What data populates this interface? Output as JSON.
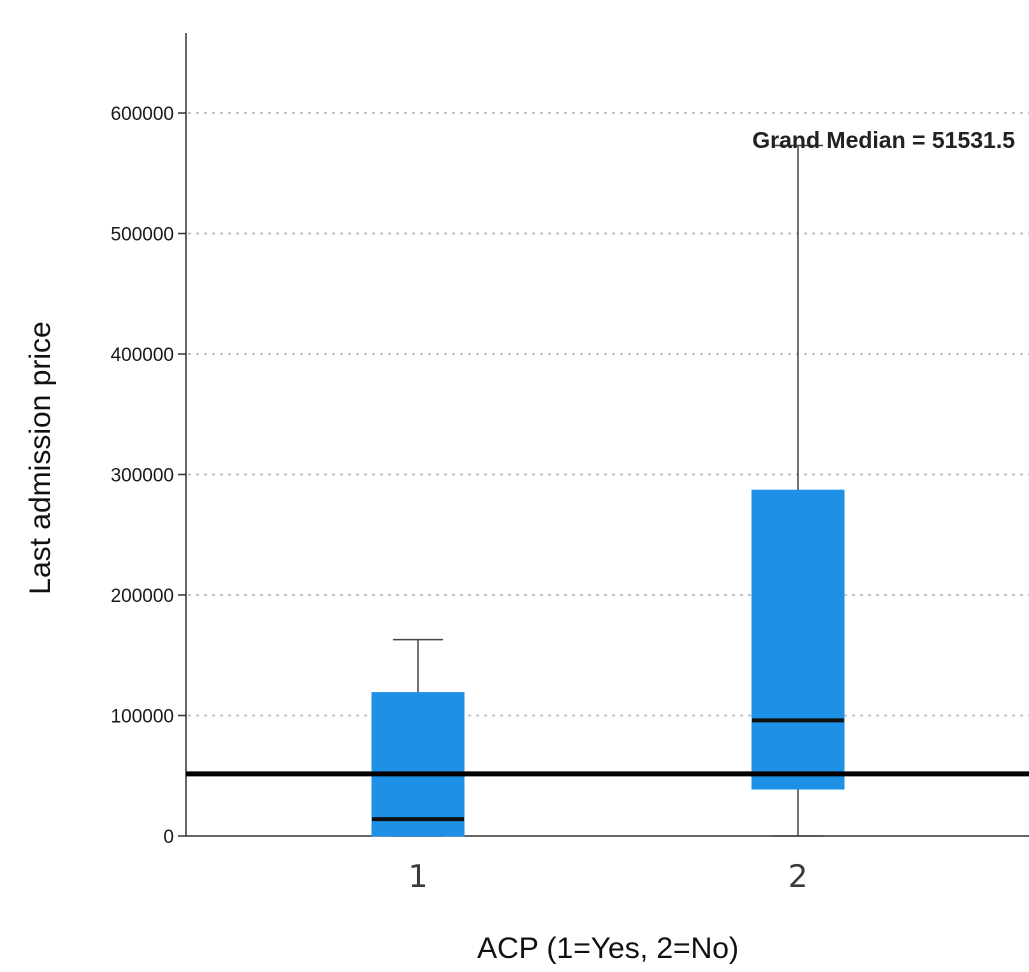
{
  "chart_data": {
    "type": "boxplot",
    "title": "",
    "xlabel": "ACP (1=Yes, 2=No)",
    "ylabel": "Last admission price",
    "categories": [
      "1",
      "2"
    ],
    "ylim": [
      0,
      660000
    ],
    "yticks": [
      0,
      100000,
      200000,
      300000,
      400000,
      500000,
      600000
    ],
    "ytick_labels": [
      "0",
      "100000",
      "200000",
      "300000",
      "400000",
      "500000",
      "600000"
    ],
    "grid": "horizontal-dotted",
    "boxes": [
      {
        "category": "1",
        "min": 0,
        "q1": 0,
        "median": 14000,
        "q3": 119000,
        "max": 163000
      },
      {
        "category": "2",
        "min": 0,
        "q1": 39000,
        "median": 96000,
        "q3": 287000,
        "max": 573000
      }
    ],
    "reference_line": {
      "value": 51531.5,
      "label": "Grand Median = 51531.5"
    },
    "colors": {
      "box_fill": "#1e90e6",
      "box_edge": "#1e90e6",
      "median": "#111111",
      "whisker": "#444444",
      "grid": "#c4c4c4",
      "reference_line": "#000000"
    }
  }
}
